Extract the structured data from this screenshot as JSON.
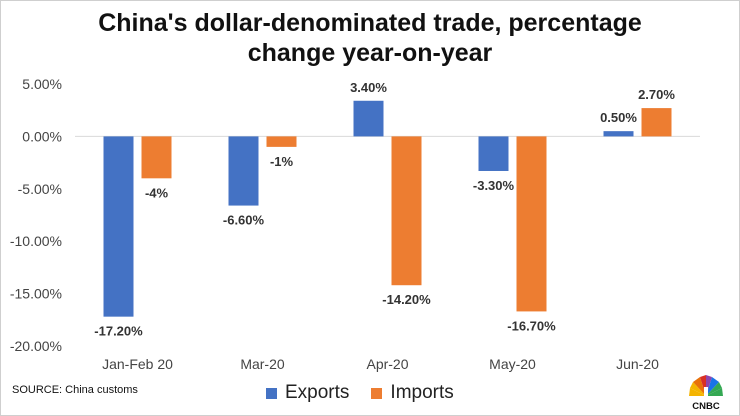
{
  "title_line1": "China's dollar-denominated trade, percentage",
  "title_line2": "change year-on-year",
  "source": "SOURCE: China customs",
  "logo_text": "CNBC",
  "colors": {
    "exports": "#4472C4",
    "imports": "#ED7D31"
  },
  "chart_data": {
    "type": "bar",
    "title": "China's dollar-denominated trade, percentage change year-on-year",
    "categories": [
      "Jan-Feb 20",
      "Mar-20",
      "Apr-20",
      "May-20",
      "Jun-20"
    ],
    "series": [
      {
        "name": "Exports",
        "values": [
          -17.2,
          -6.6,
          3.4,
          -3.3,
          0.5
        ],
        "labels": [
          "-17.20%",
          "-6.60%",
          "3.40%",
          "-3.30%",
          "0.50%"
        ]
      },
      {
        "name": "Imports",
        "values": [
          -4,
          -1,
          -14.2,
          -16.7,
          2.7
        ],
        "labels": [
          "-4%",
          "-1%",
          "-14.20%",
          "-16.70%",
          "2.70%"
        ]
      }
    ],
    "yticks": [
      "5.00%",
      "0.00%",
      "-5.00%",
      "-10.00%",
      "-15.00%",
      "-20.00%"
    ],
    "ylim": [
      -20,
      5
    ],
    "grid": false,
    "legend_position": "bottom"
  }
}
